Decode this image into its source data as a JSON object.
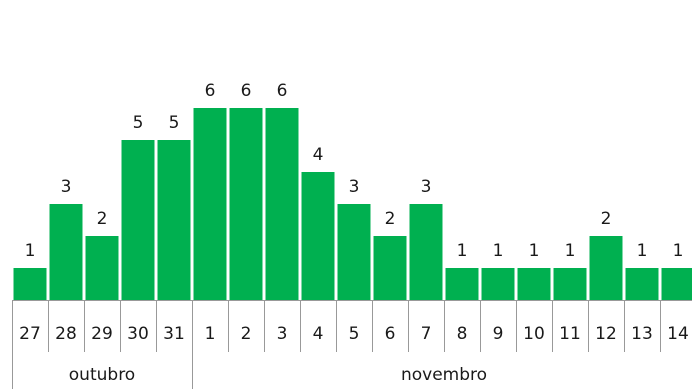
{
  "chart_data": {
    "type": "bar",
    "categories": [
      "27",
      "28",
      "29",
      "30",
      "31",
      "1",
      "2",
      "3",
      "4",
      "5",
      "6",
      "7",
      "8",
      "9",
      "10",
      "11",
      "12",
      "13",
      "14"
    ],
    "values": [
      1,
      3,
      2,
      5,
      5,
      6,
      6,
      6,
      4,
      3,
      2,
      3,
      1,
      1,
      1,
      1,
      2,
      1,
      1
    ],
    "months": [
      {
        "label": "outubro",
        "start_index": 0,
        "count": 5
      },
      {
        "label": "novembro",
        "start_index": 5,
        "count": 14
      }
    ],
    "title": "",
    "xlabel": "",
    "ylabel": "",
    "ylim": [
      0,
      6
    ],
    "data_labels": true,
    "grid": false,
    "legend": "none",
    "bar_color": "#00b050",
    "axis_color": "#999999"
  }
}
